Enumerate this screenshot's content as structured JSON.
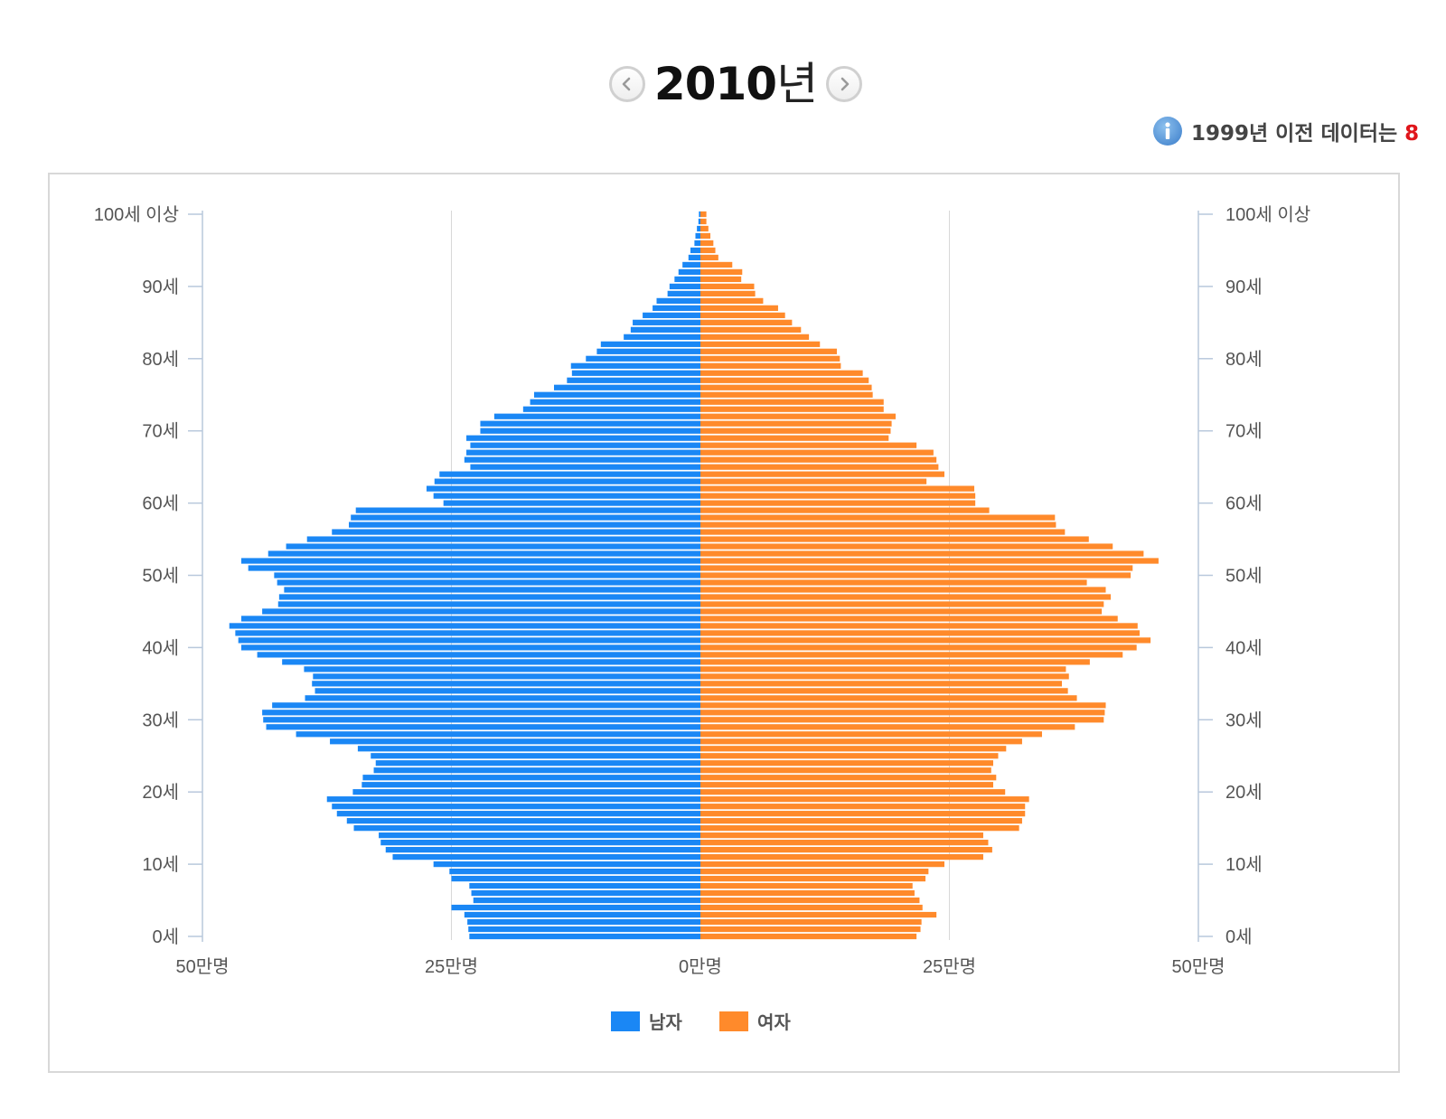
{
  "header": {
    "year": "2010",
    "year_suffix": "년",
    "prev_icon": "chevron-left-icon",
    "next_icon": "chevron-right-icon"
  },
  "info": {
    "icon": "info-icon",
    "text": "1999년 이전 데이터는 ",
    "highlight": "8"
  },
  "colors": {
    "male": "#1a87f5",
    "female": "#ff8a2b",
    "axis": "#b8c8dc",
    "grid": "#d8d8d8"
  },
  "chart_data": {
    "type": "bar",
    "orientation": "horizontal",
    "layout": "population-pyramid",
    "categories": [
      "0",
      "1",
      "2",
      "3",
      "4",
      "5",
      "6",
      "7",
      "8",
      "9",
      "10",
      "11",
      "12",
      "13",
      "14",
      "15",
      "16",
      "17",
      "18",
      "19",
      "20",
      "21",
      "22",
      "23",
      "24",
      "25",
      "26",
      "27",
      "28",
      "29",
      "30",
      "31",
      "32",
      "33",
      "34",
      "35",
      "36",
      "37",
      "38",
      "39",
      "40",
      "41",
      "42",
      "43",
      "44",
      "45",
      "46",
      "47",
      "48",
      "49",
      "50",
      "51",
      "52",
      "53",
      "54",
      "55",
      "56",
      "57",
      "58",
      "59",
      "60",
      "61",
      "62",
      "63",
      "64",
      "65",
      "66",
      "67",
      "68",
      "69",
      "70",
      "71",
      "72",
      "73",
      "74",
      "75",
      "76",
      "77",
      "78",
      "79",
      "80",
      "81",
      "82",
      "83",
      "84",
      "85",
      "86",
      "87",
      "88",
      "89",
      "90",
      "91",
      "92",
      "93",
      "94",
      "95",
      "96",
      "97",
      "98",
      "99",
      "100"
    ],
    "series": [
      {
        "name": "남자",
        "values": [
          232000,
          233000,
          234000,
          237000,
          250000,
          228000,
          230000,
          232000,
          250000,
          252000,
          268000,
          309000,
          316000,
          321000,
          323000,
          348000,
          355000,
          365000,
          370000,
          375000,
          349000,
          340000,
          339000,
          328000,
          326000,
          331000,
          344000,
          372000,
          406000,
          436000,
          439000,
          440000,
          430000,
          397000,
          387000,
          390000,
          389000,
          398000,
          420000,
          445000,
          461000,
          464000,
          467000,
          473000,
          461000,
          440000,
          424000,
          423000,
          418000,
          425000,
          428000,
          454000,
          461000,
          434000,
          416000,
          395000,
          370000,
          353000,
          351000,
          346000,
          258000,
          268000,
          275000,
          267000,
          262000,
          231000,
          237000,
          235000,
          231000,
          235000,
          221000,
          221000,
          207000,
          178000,
          171000,
          167000,
          147000,
          134000,
          129000,
          130000,
          115000,
          104000,
          100000,
          77000,
          70000,
          68000,
          58000,
          48000,
          44000,
          33000,
          31000,
          26000,
          22000,
          18000,
          12000,
          10000,
          6000,
          5000,
          3500,
          2000,
          1500
        ]
      },
      {
        "name": "여자",
        "values": [
          217000,
          221000,
          222000,
          237000,
          223000,
          220000,
          215000,
          213000,
          226000,
          229000,
          245000,
          284000,
          293000,
          289000,
          284000,
          320000,
          323000,
          326000,
          326000,
          330000,
          306000,
          294000,
          297000,
          292000,
          294000,
          299000,
          307000,
          323000,
          343000,
          376000,
          405000,
          406000,
          407000,
          378000,
          369000,
          363000,
          370000,
          367000,
          391000,
          424000,
          438000,
          452000,
          441000,
          439000,
          419000,
          403000,
          405000,
          412000,
          407000,
          388000,
          432000,
          434000,
          460000,
          445000,
          414000,
          390000,
          366000,
          357000,
          356000,
          290000,
          276000,
          276000,
          275000,
          227000,
          245000,
          239000,
          237000,
          234000,
          217000,
          189000,
          191000,
          192000,
          196000,
          184000,
          184000,
          173000,
          172000,
          169000,
          163000,
          141000,
          140000,
          137000,
          120000,
          109000,
          101000,
          92000,
          85000,
          78000,
          63000,
          55000,
          54000,
          41000,
          42000,
          32000,
          18000,
          15000,
          13000,
          10000,
          8000,
          6000,
          6000
        ]
      }
    ],
    "y_tick_labels": [
      "100세 이상",
      "90세",
      "80세",
      "70세",
      "60세",
      "50세",
      "40세",
      "30세",
      "20세",
      "10세",
      "0세"
    ],
    "x_tick_labels": [
      "50만명",
      "25만명",
      "0만명",
      "25만명",
      "50만명"
    ],
    "xlim": [
      -500000,
      500000
    ],
    "grid": "vertical",
    "legend_position": "bottom"
  }
}
